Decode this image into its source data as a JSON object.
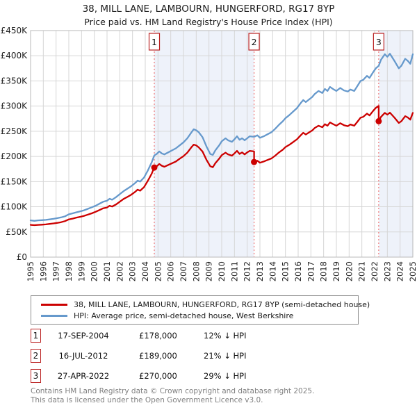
{
  "title": "38, MILL LANE, LAMBOURN, HUNGERFORD, RG17 8YP",
  "subtitle": "Price paid vs. HM Land Registry's House Price Index (HPI)",
  "legend": {
    "items": [
      {
        "label": "38, MILL LANE, LAMBOURN, HUNGERFORD, RG17 8YP (semi-detached house)",
        "color": "#cc0000"
      },
      {
        "label": "HPI: Average price, semi-detached house, West Berkshire",
        "color": "#6699cc"
      }
    ]
  },
  "transactions": [
    {
      "num": "1",
      "date": "17-SEP-2004",
      "price": "£178,000",
      "hpi": "12% ↓ HPI"
    },
    {
      "num": "2",
      "date": "16-JUL-2012",
      "price": "£189,000",
      "hpi": "21% ↓ HPI"
    },
    {
      "num": "3",
      "date": "27-APR-2022",
      "price": "£270,000",
      "hpi": "29% ↓ HPI"
    }
  ],
  "footer": {
    "line1": "Contains HM Land Registry data © Crown copyright and database right 2025.",
    "line2": "This data is licensed under the Open Government Licence v3.0."
  },
  "chart_data": {
    "type": "line",
    "x_range": [
      1995,
      2025
    ],
    "y_max_k": 450,
    "y_unit": "£K",
    "grid": true,
    "legend_position": "bottom",
    "y_ticks": [
      {
        "v": 0,
        "label": "£0"
      },
      {
        "v": 50,
        "label": "£50K"
      },
      {
        "v": 100,
        "label": "£100K"
      },
      {
        "v": 150,
        "label": "£150K"
      },
      {
        "v": 200,
        "label": "£200K"
      },
      {
        "v": 250,
        "label": "£250K"
      },
      {
        "v": 300,
        "label": "£300K"
      },
      {
        "v": 350,
        "label": "£350K"
      },
      {
        "v": 400,
        "label": "£400K"
      },
      {
        "v": 450,
        "label": "£450K"
      }
    ],
    "year_labels": [
      "1995",
      "1996",
      "1997",
      "1998",
      "1999",
      "2000",
      "2001",
      "2002",
      "2003",
      "2004",
      "2005",
      "2006",
      "2007",
      "2008",
      "2009",
      "2010",
      "2011",
      "2012",
      "2013",
      "2014",
      "2015",
      "2016",
      "2017",
      "2018",
      "2019",
      "2020",
      "2021",
      "2022",
      "2023",
      "2024",
      "2025"
    ],
    "ownership_bands": [
      [
        2004.71,
        2012.54
      ],
      [
        2022.32,
        2025
      ]
    ],
    "sales": [
      {
        "num": "1",
        "x": 2004.71,
        "price_k": 178
      },
      {
        "num": "2",
        "x": 2012.54,
        "price_k": 189
      },
      {
        "num": "3",
        "x": 2022.32,
        "price_k": 270
      }
    ],
    "colors": {
      "red": "#cc0000",
      "blue": "#6699cc",
      "band": "#eef2fa",
      "grid": "#d6d6d6",
      "border": "#b8b8b8",
      "dash": "#ee7777",
      "text": "#222222"
    },
    "series": [
      {
        "name": "price-paid",
        "color_key": "red",
        "x": [
          1995.0,
          1995.3,
          1995.6,
          1995.9,
          1996.2,
          1996.5,
          1996.8,
          1997.1,
          1997.4,
          1997.7,
          1998.0,
          1998.3,
          1998.6,
          1998.9,
          1999.2,
          1999.5,
          1999.8,
          2000.1,
          2000.4,
          2000.7,
          2001.0,
          2001.2,
          2001.4,
          2001.7,
          2002.0,
          2002.3,
          2002.6,
          2002.9,
          2003.2,
          2003.4,
          2003.6,
          2003.9,
          2004.2,
          2004.5,
          2004.71,
          2004.9,
          2005.1,
          2005.3,
          2005.5,
          2005.8,
          2006.1,
          2006.4,
          2006.7,
          2007.0,
          2007.3,
          2007.6,
          2007.8,
          2008.0,
          2008.2,
          2008.5,
          2008.8,
          2009.1,
          2009.3,
          2009.5,
          2009.8,
          2010.0,
          2010.3,
          2010.5,
          2010.8,
          2011.0,
          2011.2,
          2011.4,
          2011.6,
          2011.8,
          2012.0,
          2012.2,
          2012.54,
          2012.54,
          2012.8,
          2013.0,
          2013.3,
          2013.6,
          2013.9,
          2014.2,
          2014.5,
          2014.8,
          2015.0,
          2015.3,
          2015.6,
          2015.9,
          2016.2,
          2016.4,
          2016.6,
          2016.9,
          2017.1,
          2017.3,
          2017.6,
          2017.9,
          2018.1,
          2018.3,
          2018.5,
          2018.8,
          2019.0,
          2019.3,
          2019.6,
          2019.9,
          2020.1,
          2020.4,
          2020.7,
          2020.9,
          2021.1,
          2021.4,
          2021.6,
          2021.9,
          2022.1,
          2022.32,
          2022.32,
          2022.5,
          2022.8,
          2023.0,
          2023.2,
          2023.4,
          2023.6,
          2023.9,
          2024.1,
          2024.4,
          2024.6,
          2024.8,
          2025.0
        ],
        "y_k": [
          64,
          63.5,
          64,
          64.5,
          65,
          66,
          67,
          68,
          69.5,
          71.5,
          75,
          76.5,
          78.5,
          80,
          82,
          84.5,
          87,
          90,
          93.5,
          97,
          98.5,
          102,
          100.5,
          104.5,
          110,
          115.5,
          119.5,
          124,
          129.5,
          134,
          132,
          139,
          151.5,
          165.5,
          178,
          180.5,
          185,
          181.5,
          179.5,
          183,
          186.5,
          190,
          195.5,
          200.5,
          207.5,
          217.5,
          223.5,
          222,
          218,
          209.5,
          193.5,
          180.5,
          178.5,
          186.5,
          195.5,
          202.5,
          207.5,
          204,
          201.5,
          206,
          211,
          205,
          208,
          204,
          208,
          211,
          210,
          189,
          191.5,
          187.5,
          190,
          193,
          196,
          201.5,
          208,
          213.5,
          218.5,
          223,
          228.5,
          234,
          242,
          247,
          243.5,
          248.5,
          251.5,
          256.5,
          261,
          258,
          264,
          261,
          267.5,
          263.5,
          261,
          266,
          262,
          260,
          263.5,
          261,
          270.5,
          277,
          278.5,
          285,
          281.5,
          291,
          296.5,
          300.5,
          270,
          278.5,
          286.5,
          283,
          287,
          281.5,
          276,
          266.5,
          270,
          280,
          277.5,
          273,
          286.5
        ]
      },
      {
        "name": "hpi",
        "color_key": "blue",
        "x": [
          1995.0,
          1995.3,
          1995.6,
          1995.9,
          1996.2,
          1996.5,
          1996.8,
          1997.1,
          1997.4,
          1997.7,
          1998.0,
          1998.3,
          1998.6,
          1998.9,
          1999.2,
          1999.5,
          1999.8,
          2000.1,
          2000.4,
          2000.7,
          2001.0,
          2001.2,
          2001.4,
          2001.7,
          2002.0,
          2002.3,
          2002.6,
          2002.9,
          2003.2,
          2003.4,
          2003.6,
          2003.9,
          2004.2,
          2004.5,
          2004.71,
          2004.9,
          2005.1,
          2005.3,
          2005.5,
          2005.8,
          2006.1,
          2006.4,
          2006.7,
          2007.0,
          2007.3,
          2007.6,
          2007.8,
          2008.0,
          2008.2,
          2008.5,
          2008.8,
          2009.1,
          2009.3,
          2009.5,
          2009.8,
          2010.0,
          2010.3,
          2010.5,
          2010.8,
          2011.0,
          2011.2,
          2011.4,
          2011.6,
          2011.8,
          2012.0,
          2012.2,
          2012.54,
          2012.8,
          2013.0,
          2013.3,
          2013.6,
          2013.9,
          2014.2,
          2014.5,
          2014.8,
          2015.0,
          2015.3,
          2015.6,
          2015.9,
          2016.2,
          2016.4,
          2016.6,
          2016.9,
          2017.1,
          2017.3,
          2017.6,
          2017.9,
          2018.1,
          2018.3,
          2018.5,
          2018.8,
          2019.0,
          2019.3,
          2019.6,
          2019.9,
          2020.1,
          2020.4,
          2020.7,
          2020.9,
          2021.1,
          2021.4,
          2021.6,
          2021.9,
          2022.1,
          2022.32,
          2022.5,
          2022.8,
          2023.0,
          2023.2,
          2023.4,
          2023.6,
          2023.9,
          2024.1,
          2024.4,
          2024.6,
          2024.8,
          2025.0
        ],
        "y_k": [
          73,
          72,
          73,
          73.5,
          74,
          75,
          76,
          77.5,
          79,
          81,
          85,
          87,
          89,
          91,
          93,
          96,
          99,
          102,
          106,
          110,
          112,
          116,
          114,
          119,
          125,
          131,
          136,
          141,
          147,
          152,
          150,
          158,
          172,
          188,
          202,
          205,
          210,
          206,
          204,
          208,
          212,
          216,
          222,
          228,
          236,
          247,
          254,
          252,
          248,
          238,
          220,
          205,
          203,
          212,
          222,
          230,
          236,
          232,
          229,
          234,
          240,
          233,
          236,
          232,
          236,
          240,
          239,
          242,
          237,
          240,
          244,
          248,
          255,
          263,
          270,
          276,
          282,
          289,
          296,
          306,
          312,
          308,
          314,
          318,
          324,
          330,
          326,
          334,
          330,
          338,
          333,
          330,
          336,
          331,
          329,
          333,
          330,
          342,
          350,
          352,
          360,
          356,
          368,
          375,
          380,
          392,
          403,
          398,
          404,
          396,
          388,
          375,
          380,
          394,
          390,
          384,
          403
        ]
      }
    ]
  }
}
